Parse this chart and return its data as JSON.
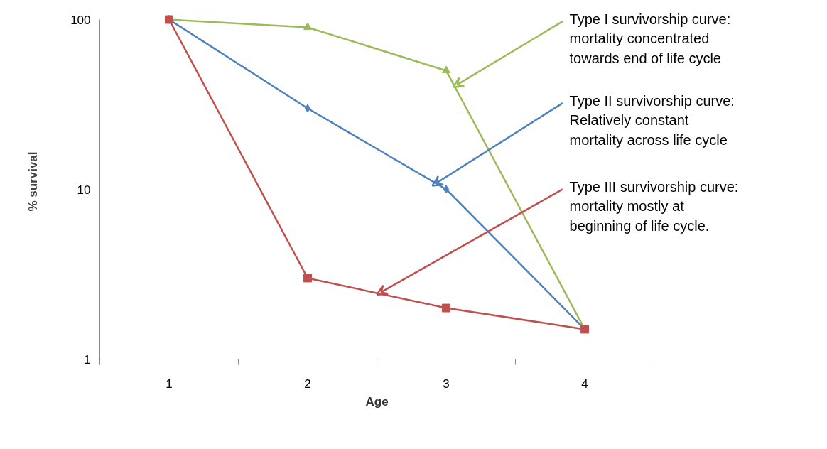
{
  "chart_data": {
    "type": "line",
    "xlabel": "Age",
    "ylabel": "% survival",
    "x": [
      1,
      2,
      3,
      4
    ],
    "xlim": [
      0.5,
      4.5
    ],
    "xticks": [
      {
        "value": 0.5,
        "label": null
      },
      1,
      {
        "value": 1.5,
        "label": null
      },
      2,
      {
        "value": 2.5,
        "label": null
      },
      3,
      {
        "value": 3.5,
        "label": null
      },
      4,
      {
        "value": 4.5,
        "label": null
      }
    ],
    "ylim": [
      1,
      100
    ],
    "yticks": [
      1,
      10,
      100
    ],
    "log": true,
    "grid": false,
    "series": [
      {
        "color": "#9bbb59",
        "marker": "triangle",
        "values": [
          100,
          90,
          50,
          1.5
        ]
      },
      {
        "color": "#4f81bd",
        "marker": "diamond",
        "values": [
          100,
          30,
          10,
          1.5
        ]
      },
      {
        "color": "#c0504d",
        "marker": "square",
        "values": [
          100,
          3,
          2,
          1.5
        ]
      }
    ],
    "annotations": [
      {
        "text": "Type I survivorship curve:\nmortality concentrated\ntowards end of life cycle",
        "x": 3.05,
        "y": 40
      },
      {
        "text": "Type II survivorship curve:\nRelatively constant\nmortality across life cycle",
        "x": 2.9,
        "y": 10.5
      },
      {
        "text": "Type III survivorship curve:\nmortality mostly at\nbeginning of life cycle.",
        "x": 2.5,
        "y": 2.4
      }
    ]
  }
}
